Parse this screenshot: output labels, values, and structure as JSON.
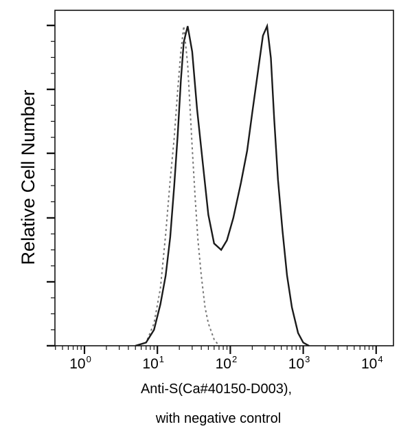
{
  "chart_data": {
    "type": "line",
    "title": "",
    "xlabel": "Anti-S(Ca#40150-D003),",
    "xlabel_line2": "with negative control",
    "ylabel": "Relative Cell Number",
    "x_scale": "log",
    "xlim": [
      0.3,
      15000
    ],
    "ylim": [
      0,
      100
    ],
    "grid": false,
    "legend": null,
    "x_ticks": [
      {
        "base": "10",
        "exp": "0",
        "value": 1
      },
      {
        "base": "10",
        "exp": "1",
        "value": 10
      },
      {
        "base": "10",
        "exp": "2",
        "value": 100
      },
      {
        "base": "10",
        "exp": "3",
        "value": 1000
      },
      {
        "base": "10",
        "exp": "4",
        "value": 10000
      }
    ],
    "y_ticks": "unlabeled (5 major ticks)",
    "series": [
      {
        "name": "Anti-S(Ca#40150-D003)",
        "style": "solid",
        "color": "#1a1a1a",
        "x": [
          5,
          7,
          9,
          11,
          13,
          15,
          17,
          19,
          21,
          23,
          26,
          30,
          35,
          42,
          50,
          60,
          75,
          90,
          110,
          140,
          170,
          200,
          240,
          280,
          320,
          360,
          400,
          450,
          520,
          600,
          700,
          850,
          1000,
          1200
        ],
        "y": [
          0,
          1,
          5,
          13,
          22,
          34,
          50,
          66,
          83,
          95,
          100,
          92,
          74,
          57,
          41,
          32,
          30,
          33,
          40,
          51,
          61,
          73,
          86,
          97,
          100,
          90,
          71,
          52,
          36,
          22,
          12,
          4,
          1,
          0
        ]
      },
      {
        "name": "Negative control",
        "style": "dashed",
        "color": "#888888",
        "x": [
          5,
          7,
          9,
          11,
          13,
          15,
          17,
          19,
          21,
          23,
          26,
          30,
          33,
          36,
          40,
          45,
          50,
          60,
          70
        ],
        "y": [
          0,
          1,
          7,
          18,
          35,
          52,
          65,
          80,
          92,
          100,
          88,
          62,
          46,
          33,
          22,
          12,
          7,
          2,
          0
        ]
      }
    ]
  }
}
